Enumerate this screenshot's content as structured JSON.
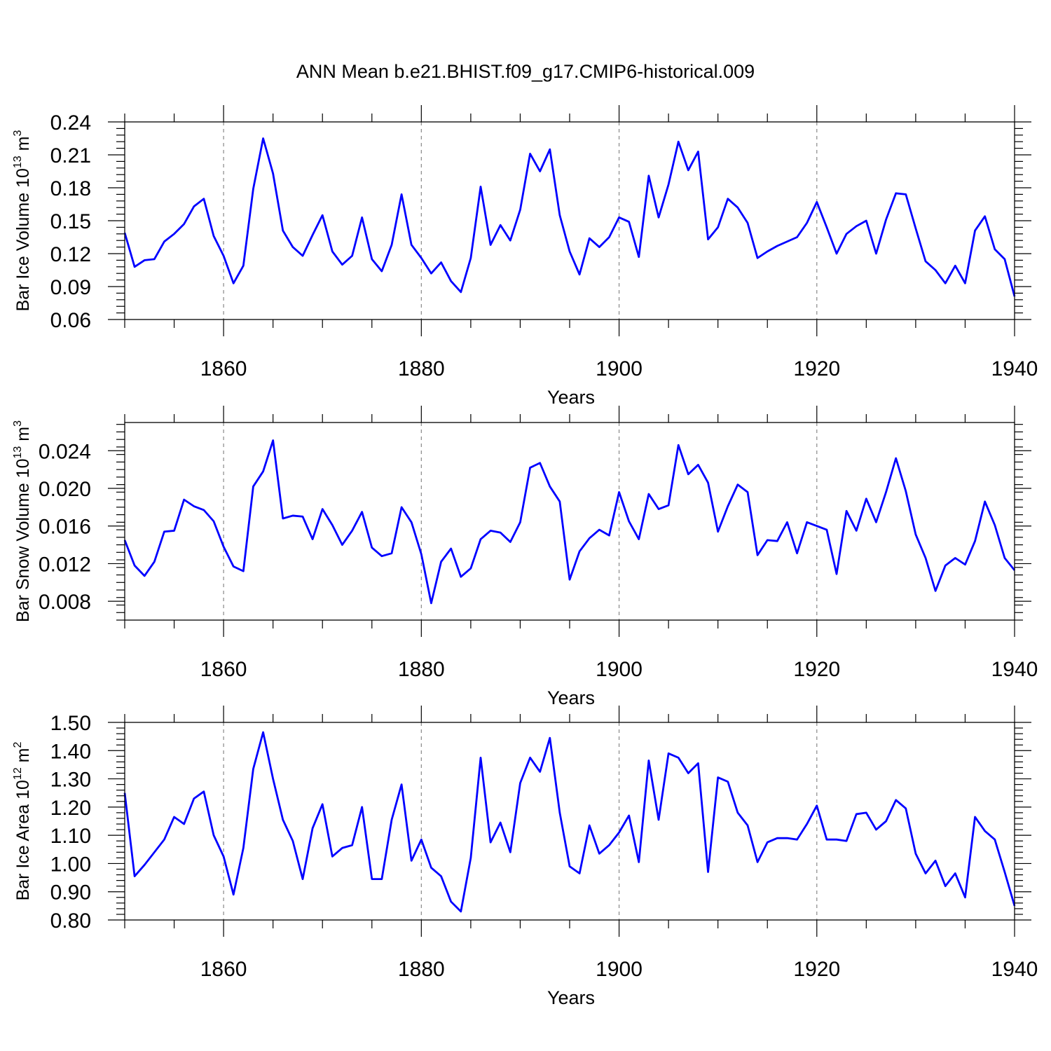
{
  "title": "ANN Mean b.e21.BHIST.f09_g17.CMIP6-historical.009",
  "line_color": "#0000ff",
  "chart_data": [
    {
      "type": "line",
      "xlabel": "Years",
      "ylabel": "Bar Ice Volume 10",
      "ylabel_exp": "13",
      "ylabel_unit": "m",
      "ylabel_unit_exp": "3",
      "xlim": [
        1850,
        1940
      ],
      "ylim": [
        0.06,
        0.24
      ],
      "yticks": [
        0.06,
        0.09,
        0.12,
        0.15,
        0.18,
        0.21,
        0.24
      ],
      "ytick_labels": [
        "0.06",
        "0.09",
        "0.12",
        "0.15",
        "0.18",
        "0.21",
        "0.24"
      ],
      "xticks": [
        1860,
        1880,
        1900,
        1920,
        1940
      ],
      "xtick_labels": [
        "1860",
        "1880",
        "1900",
        "1920",
        "1940"
      ],
      "x_start": 1850,
      "series": [
        {
          "values": [
            0.139,
            0.108,
            0.114,
            0.115,
            0.131,
            0.138,
            0.147,
            0.163,
            0.17,
            0.136,
            0.118,
            0.093,
            0.109,
            0.179,
            0.225,
            0.193,
            0.141,
            0.126,
            0.118,
            0.137,
            0.155,
            0.122,
            0.11,
            0.118,
            0.153,
            0.115,
            0.104,
            0.128,
            0.174,
            0.128,
            0.116,
            0.102,
            0.112,
            0.095,
            0.085,
            0.116,
            0.181,
            0.128,
            0.146,
            0.132,
            0.16,
            0.211,
            0.195,
            0.215,
            0.155,
            0.122,
            0.101,
            0.134,
            0.126,
            0.135,
            0.153,
            0.149,
            0.117,
            0.191,
            0.153,
            0.183,
            0.222,
            0.196,
            0.213,
            0.133,
            0.144,
            0.17,
            0.162,
            0.148,
            0.116,
            0.122,
            0.127,
            0.131,
            0.135,
            0.148,
            0.167,
            0.144,
            0.12,
            0.138,
            0.145,
            0.15,
            0.12,
            0.151,
            0.175,
            0.174,
            0.143,
            0.113,
            0.105,
            0.093,
            0.109,
            0.093,
            0.141,
            0.154,
            0.124,
            0.115,
            0.081
          ]
        }
      ]
    },
    {
      "type": "line",
      "xlabel": "Years",
      "ylabel": "Bar Snow Volume 10",
      "ylabel_exp": "13",
      "ylabel_unit": "m",
      "ylabel_unit_exp": "3",
      "xlim": [
        1850,
        1940
      ],
      "ylim": [
        0.006,
        0.027
      ],
      "yticks": [
        0.008,
        0.012,
        0.016,
        0.02,
        0.024
      ],
      "ytick_labels": [
        "0.008",
        "0.012",
        "0.016",
        "0.020",
        "0.024"
      ],
      "xticks": [
        1860,
        1880,
        1900,
        1920,
        1940
      ],
      "xtick_labels": [
        "1860",
        "1880",
        "1900",
        "1920",
        "1940"
      ],
      "x_start": 1850,
      "series": [
        {
          "values": [
            0.0145,
            0.0118,
            0.0107,
            0.0122,
            0.0154,
            0.0155,
            0.0188,
            0.0181,
            0.0177,
            0.0165,
            0.0138,
            0.0117,
            0.0112,
            0.0202,
            0.0218,
            0.0251,
            0.0168,
            0.0171,
            0.017,
            0.0146,
            0.0178,
            0.0161,
            0.014,
            0.0155,
            0.0175,
            0.0137,
            0.0128,
            0.0131,
            0.018,
            0.0164,
            0.013,
            0.0078,
            0.0122,
            0.0136,
            0.0106,
            0.0115,
            0.0146,
            0.0155,
            0.0153,
            0.0143,
            0.0164,
            0.0222,
            0.0227,
            0.0202,
            0.0186,
            0.0103,
            0.0133,
            0.0147,
            0.0156,
            0.015,
            0.0196,
            0.0165,
            0.0146,
            0.0194,
            0.0178,
            0.0182,
            0.0246,
            0.0215,
            0.0225,
            0.0206,
            0.0154,
            0.0181,
            0.0204,
            0.0196,
            0.0129,
            0.0145,
            0.0144,
            0.0164,
            0.0131,
            0.0164,
            0.016,
            0.0156,
            0.0109,
            0.0176,
            0.0155,
            0.0189,
            0.0164,
            0.0196,
            0.0232,
            0.0197,
            0.0151,
            0.0126,
            0.0091,
            0.0118,
            0.0126,
            0.0119,
            0.0144,
            0.0186,
            0.0161,
            0.0126,
            0.0113
          ]
        }
      ]
    },
    {
      "type": "line",
      "xlabel": "Years",
      "ylabel": "Bar Ice Area 10",
      "ylabel_exp": "12",
      "ylabel_unit": "m",
      "ylabel_unit_exp": "2",
      "xlim": [
        1850,
        1940
      ],
      "ylim": [
        0.8,
        1.5
      ],
      "yticks": [
        0.8,
        0.9,
        1.0,
        1.1,
        1.2,
        1.3,
        1.4,
        1.5
      ],
      "ytick_labels": [
        "0.80",
        "0.90",
        "1.00",
        "1.10",
        "1.20",
        "1.30",
        "1.40",
        "1.50"
      ],
      "xticks": [
        1860,
        1880,
        1900,
        1920,
        1940
      ],
      "xtick_labels": [
        "1860",
        "1880",
        "1900",
        "1920",
        "1940"
      ],
      "x_start": 1850,
      "series": [
        {
          "values": [
            1.25,
            0.955,
            0.995,
            1.04,
            1.085,
            1.165,
            1.14,
            1.23,
            1.255,
            1.1,
            1.025,
            0.89,
            1.055,
            1.335,
            1.465,
            1.3,
            1.155,
            1.08,
            0.945,
            1.125,
            1.21,
            1.025,
            1.055,
            1.065,
            1.2,
            0.945,
            0.945,
            1.155,
            1.28,
            1.01,
            1.085,
            0.985,
            0.955,
            0.865,
            0.83,
            1.02,
            1.375,
            1.075,
            1.145,
            1.04,
            1.285,
            1.375,
            1.325,
            1.445,
            1.18,
            0.99,
            0.965,
            1.135,
            1.035,
            1.065,
            1.11,
            1.17,
            1.005,
            1.365,
            1.155,
            1.39,
            1.375,
            1.32,
            1.355,
            0.97,
            1.305,
            1.29,
            1.18,
            1.135,
            1.005,
            1.075,
            1.09,
            1.09,
            1.085,
            1.14,
            1.205,
            1.085,
            1.085,
            1.08,
            1.175,
            1.18,
            1.12,
            1.15,
            1.225,
            1.195,
            1.035,
            0.965,
            1.01,
            0.92,
            0.965,
            0.88,
            1.165,
            1.115,
            1.085,
            0.97,
            0.85
          ]
        }
      ]
    }
  ]
}
